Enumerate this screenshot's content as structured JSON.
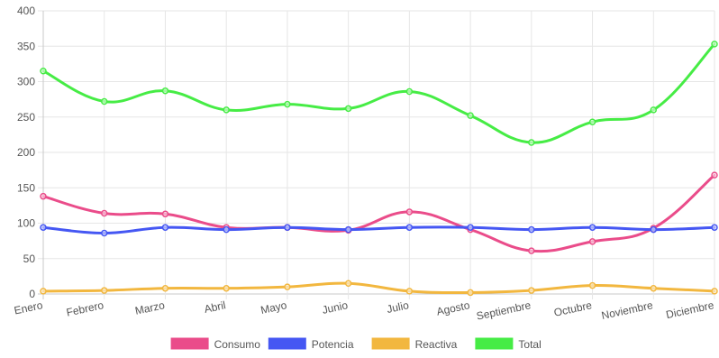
{
  "chart_data": {
    "type": "line",
    "categories": [
      "Enero",
      "Febrero",
      "Marzo",
      "Abril",
      "Mayo",
      "Junio",
      "Julio",
      "Agosto",
      "Septiembre",
      "Octubre",
      "Noviembre",
      "Diciembre"
    ],
    "series": [
      {
        "name": "Consumo",
        "color": "#ea4c8a",
        "values": [
          138,
          114,
          113,
          94,
          94,
          90,
          116,
          91,
          61,
          74,
          93,
          168
        ]
      },
      {
        "name": "Potencia",
        "color": "#4557f3",
        "values": [
          94,
          86,
          94,
          91,
          94,
          91,
          94,
          94,
          91,
          94,
          91,
          94
        ]
      },
      {
        "name": "Reactiva",
        "color": "#f2b73f",
        "values": [
          4,
          5,
          8,
          8,
          10,
          15,
          4,
          2,
          5,
          12,
          8,
          4
        ]
      },
      {
        "name": "Total",
        "color": "#46ec45",
        "values": [
          315,
          272,
          287,
          260,
          268,
          262,
          286,
          252,
          214,
          243,
          260,
          353
        ]
      }
    ],
    "ylim": [
      0,
      400
    ],
    "yticks": [
      0,
      50,
      100,
      150,
      200,
      250,
      300,
      350,
      400
    ],
    "grid": true,
    "legend_position": "bottom"
  }
}
